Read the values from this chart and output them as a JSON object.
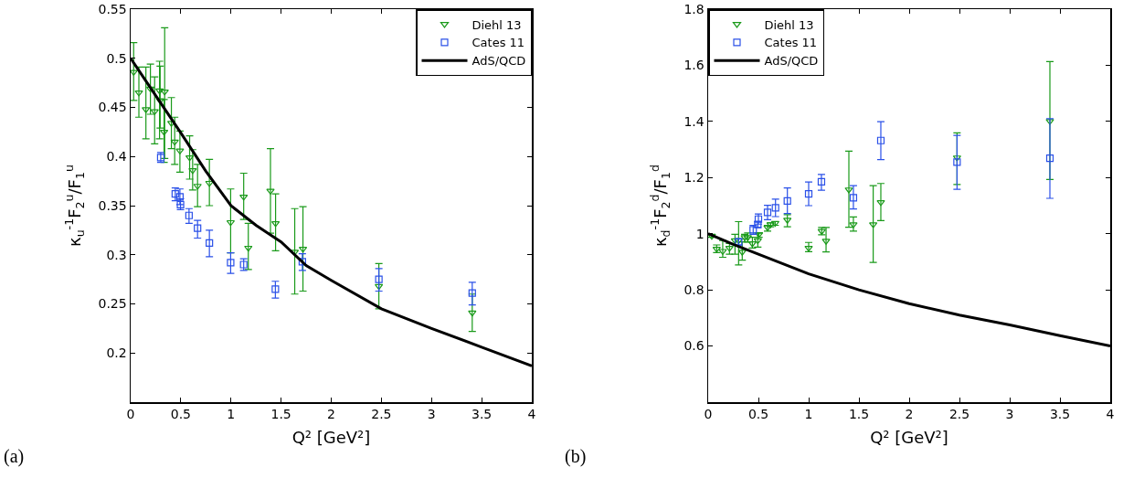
{
  "chart_data": [
    {
      "type": "scatter",
      "xlabel": "Q² [GeV²]",
      "ylabel": "κ$_{u}$$^{-1}$F$_{2}$$^{u}$/F$_{1}$$^{u}$",
      "annotations": [
        "(a)"
      ],
      "xlim": [
        0,
        4
      ],
      "xticks": [
        0,
        0.5,
        1,
        1.5,
        2,
        2.5,
        3,
        3.5,
        4
      ],
      "ylim": [
        0.15,
        0.55
      ],
      "yticks": [
        0.2,
        0.25,
        0.3,
        0.35,
        0.4,
        0.45,
        0.5,
        0.55
      ],
      "grid": false,
      "legend": "top right",
      "series": [
        {
          "name": "Diehl 13",
          "color": "#1a9a1a",
          "marker": "triangle",
          "x": [
            0.03,
            0.082,
            0.152,
            0.197,
            0.239,
            0.288,
            0.294,
            0.339,
            0.333,
            0.406,
            0.439,
            0.491,
            0.588,
            0.618,
            0.667,
            0.785,
            0.997,
            1.127,
            1.173,
            1.394,
            1.445,
            1.636,
            1.718,
            2.475,
            3.406
          ],
          "values": [
            0.486,
            0.465,
            0.448,
            0.469,
            0.446,
            0.467,
            0.457,
            0.466,
            0.425,
            0.434,
            0.415,
            0.406,
            0.399,
            0.386,
            0.37,
            0.373,
            0.333,
            0.359,
            0.307,
            0.365,
            0.332,
            0.303,
            0.306,
            0.268,
            0.241
          ],
          "errors": [
            [
              0.457,
              0.516
            ],
            [
              0.44,
              0.491
            ],
            [
              0.418,
              0.491
            ],
            [
              0.443,
              0.494
            ],
            [
              0.413,
              0.481
            ],
            [
              0.418,
              0.497
            ],
            [
              0.429,
              0.492
            ],
            [
              0.398,
              0.531
            ],
            [
              0.394,
              0.458
            ],
            [
              0.408,
              0.46
            ],
            [
              0.392,
              0.44
            ],
            [
              0.384,
              0.426
            ],
            [
              0.377,
              0.421
            ],
            [
              0.366,
              0.407
            ],
            [
              0.349,
              0.392
            ],
            [
              0.35,
              0.397
            ],
            [
              0.302,
              0.367
            ],
            [
              0.336,
              0.383
            ],
            [
              0.285,
              0.332
            ],
            [
              0.322,
              0.408
            ],
            [
              0.304,
              0.362
            ],
            [
              0.26,
              0.347
            ],
            [
              0.263,
              0.349
            ],
            [
              0.245,
              0.291
            ],
            [
              0.222,
              0.26
            ]
          ]
        },
        {
          "name": "Cates 11",
          "color": "#2a50e8",
          "marker": "square",
          "x": [
            0.3,
            0.445,
            0.491,
            0.497,
            0.582,
            0.667,
            0.785,
            0.997,
            1.127,
            1.443,
            1.712,
            2.475,
            3.406
          ],
          "values": [
            0.399,
            0.362,
            0.359,
            0.351,
            0.34,
            0.327,
            0.312,
            0.292,
            0.29,
            0.265,
            0.293,
            0.275,
            0.261
          ],
          "errors": [
            [
              0.394,
              0.404
            ],
            [
              0.355,
              0.368
            ],
            [
              0.351,
              0.367
            ],
            [
              0.346,
              0.357
            ],
            [
              0.332,
              0.347
            ],
            [
              0.317,
              0.335
            ],
            [
              0.298,
              0.325
            ],
            [
              0.281,
              0.302
            ],
            [
              0.284,
              0.296
            ],
            [
              0.256,
              0.273
            ],
            [
              0.284,
              0.301
            ],
            [
              0.263,
              0.286
            ],
            [
              0.249,
              0.272
            ]
          ]
        },
        {
          "name": "AdS/QCD",
          "type": "line",
          "color": "#000000",
          "marker": "none",
          "x": [
            0,
            0.25,
            0.5,
            0.75,
            1,
            1.25,
            1.5,
            1.75,
            2,
            2.5,
            3,
            3.5,
            4
          ],
          "values": [
            0.5,
            0.462,
            0.424,
            0.385,
            0.35,
            0.33,
            0.313,
            0.289,
            0.274,
            0.245,
            0.225,
            0.206,
            0.187
          ]
        }
      ]
    },
    {
      "type": "scatter",
      "xlabel": "Q² [GeV²]",
      "ylabel": "κ$_{d}$$^{-1}$F$_{2}$$^{d}$/F$_{1}$$^{d}$",
      "annotations": [
        "(b)"
      ],
      "xlim": [
        0,
        4
      ],
      "xticks": [
        0,
        0.5,
        1,
        1.5,
        2,
        2.5,
        3,
        3.5,
        4
      ],
      "ylim": [
        0.4,
        1.8
      ],
      "yticks": [
        0.6,
        0.8,
        1,
        1.2,
        1.4,
        1.6,
        1.8
      ],
      "grid": false,
      "legend": "top left",
      "series": [
        {
          "name": "Diehl 13",
          "color": "#1a9a1a",
          "marker": "triangle",
          "x": [
            0.036,
            0.085,
            0.145,
            0.212,
            0.267,
            0.303,
            0.339,
            0.364,
            0.394,
            0.44,
            0.494,
            0.506,
            0.591,
            0.621,
            0.667,
            0.788,
            1.0,
            1.13,
            1.173,
            1.4,
            1.445,
            1.642,
            1.718,
            2.476,
            3.4
          ],
          "values": [
            0.992,
            0.946,
            0.938,
            0.949,
            0.976,
            0.976,
            0.935,
            0.987,
            0.987,
            0.965,
            0.976,
            0.998,
            1.022,
            1.033,
            1.038,
            1.049,
            0.949,
            1.009,
            0.974,
            1.157,
            1.033,
            1.033,
            1.112,
            1.271,
            1.401
          ],
          "errors": [
            [
              0.987,
              0.997
            ],
            [
              0.933,
              0.96
            ],
            [
              0.916,
              0.976
            ],
            [
              0.927,
              0.965
            ],
            [
              0.927,
              0.998
            ],
            [
              0.889,
              1.043
            ],
            [
              0.906,
              0.971
            ],
            [
              0.971,
              0.998
            ],
            [
              0.97,
              1.003
            ],
            [
              0.949,
              0.987
            ],
            [
              0.952,
              1.003
            ],
            [
              0.987,
              1.003
            ],
            [
              1.009,
              1.03
            ],
            [
              1.025,
              1.039
            ],
            [
              1.03,
              1.043
            ],
            [
              1.025,
              1.068
            ],
            [
              0.936,
              0.969
            ],
            [
              0.996,
              1.022
            ],
            [
              0.935,
              1.022
            ],
            [
              1.023,
              1.294
            ],
            [
              1.009,
              1.06
            ],
            [
              0.898,
              1.171
            ],
            [
              1.047,
              1.179
            ],
            [
              1.175,
              1.359
            ],
            [
              1.193,
              1.613
            ]
          ]
        },
        {
          "name": "Cates 11",
          "color": "#2a50e8",
          "marker": "square",
          "x": [
            0.303,
            0.448,
            0.494,
            0.5,
            0.591,
            0.67,
            0.788,
            1.0,
            1.127,
            1.445,
            1.718,
            2.476,
            3.4
          ],
          "values": [
            0.971,
            1.014,
            1.033,
            1.052,
            1.076,
            1.092,
            1.117,
            1.142,
            1.185,
            1.128,
            1.332,
            1.255,
            1.269
          ],
          "errors": [
            [
              0.96,
              0.982
            ],
            [
              0.998,
              1.03
            ],
            [
              1.022,
              1.043
            ],
            [
              1.034,
              1.07
            ],
            [
              1.05,
              1.101
            ],
            [
              1.061,
              1.123
            ],
            [
              1.072,
              1.163
            ],
            [
              1.1,
              1.184
            ],
            [
              1.155,
              1.211
            ],
            [
              1.088,
              1.171
            ],
            [
              1.264,
              1.399
            ],
            [
              1.158,
              1.35
            ],
            [
              1.126,
              1.41
            ]
          ]
        },
        {
          "name": "AdS/QCD",
          "type": "line",
          "color": "#000000",
          "marker": "none",
          "x": [
            0,
            0.25,
            0.5,
            1,
            1.5,
            2,
            2.5,
            3,
            3.5,
            4
          ],
          "values": [
            1.0,
            0.962,
            0.927,
            0.857,
            0.8,
            0.751,
            0.71,
            0.675,
            0.637,
            0.6
          ]
        }
      ]
    }
  ]
}
